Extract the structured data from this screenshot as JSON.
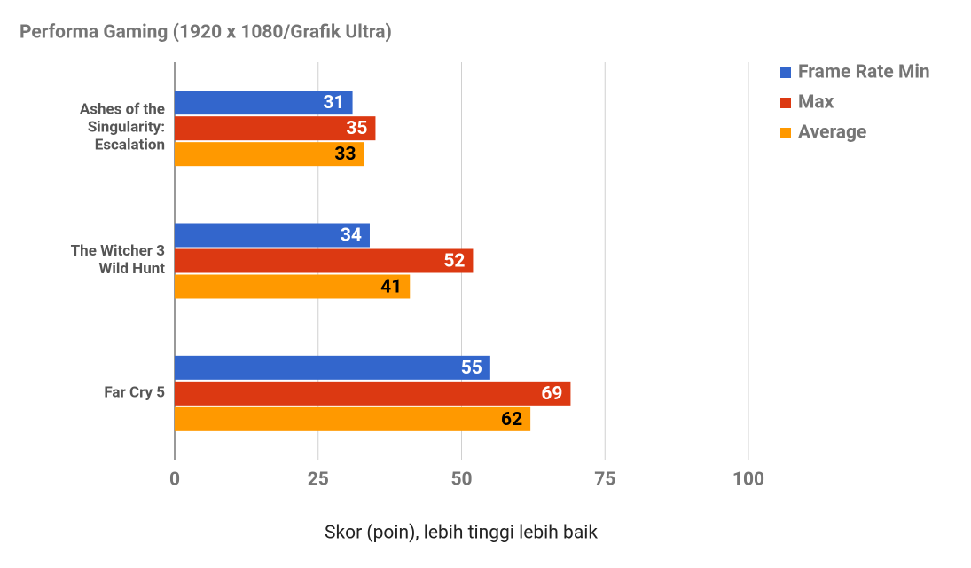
{
  "chart_data": {
    "type": "hbar",
    "title": "Performa Gaming (1920 x 1080/Grafik Ultra)",
    "x_label": "Skor (poin), lebih tinggi lebih baik",
    "categories": [
      "Ashes of the\nSingularity:\nEscalation",
      "The Witcher 3\nWild Hunt",
      "Far Cry 5"
    ],
    "series": [
      {
        "name": "Frame Rate Min",
        "color": "#3366cc",
        "label_color": "#ffffff",
        "values": [
          31,
          34,
          55
        ]
      },
      {
        "name": "Max",
        "color": "#dc3912",
        "label_color": "#ffffff",
        "values": [
          35,
          52,
          69
        ]
      },
      {
        "name": "Average",
        "color": "#ff9900",
        "label_color": "#000000",
        "values": [
          33,
          41,
          62
        ]
      }
    ],
    "xlim": [
      0,
      100
    ],
    "xticks": [
      0,
      25,
      50,
      75,
      100
    ],
    "grid": true,
    "legend": "right"
  }
}
